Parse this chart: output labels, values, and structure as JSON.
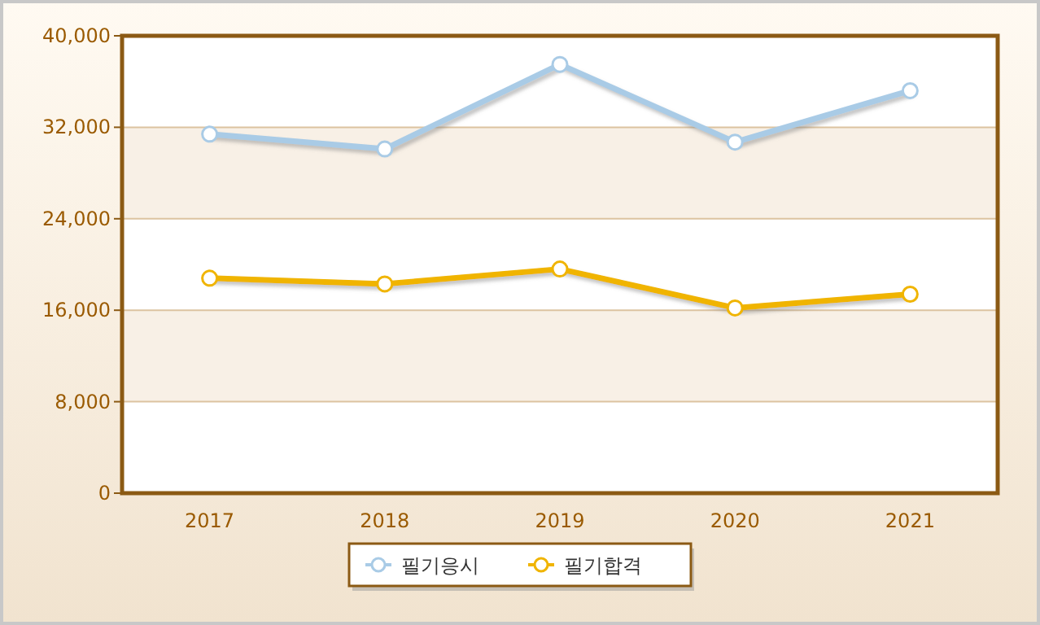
{
  "chart_data": {
    "type": "line",
    "categories": [
      "2017",
      "2018",
      "2019",
      "2020",
      "2021"
    ],
    "series": [
      {
        "name": "필기응시",
        "color": "#a9cbe6",
        "values": [
          31400,
          30100,
          37500,
          30700,
          35200
        ]
      },
      {
        "name": "필기합격",
        "color": "#f0b400",
        "values": [
          18800,
          18300,
          19600,
          16200,
          17400
        ]
      }
    ],
    "ylim": [
      0,
      40000
    ],
    "yticks": [
      0,
      {
        "value": 8000,
        "label": "8,000"
      },
      {
        "value": 16000,
        "label": "16,000"
      },
      {
        "value": 24000,
        "label": "24,000"
      },
      {
        "value": 32000,
        "label": "32,000"
      },
      {
        "value": 40000,
        "label": "40,000"
      }
    ],
    "grid": "y",
    "legend": "bottom",
    "marker": "circle",
    "line_style": "solid"
  }
}
